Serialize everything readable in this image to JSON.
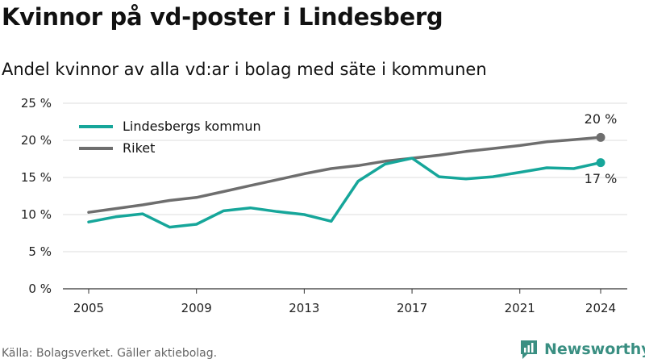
{
  "title": "Kvinnor på vd-poster i Lindesberg",
  "subtitle": "Andel kvinnor av alla vd:ar i bolag med säte i kommunen",
  "source": "Källa: Bolagsverket. Gäller aktiebolag.",
  "brand": "Newsworthy",
  "colors": {
    "lindesberg": "#16a69a",
    "riket": "#6e6e6e",
    "brand": "#3a8f82"
  },
  "chart_data": {
    "type": "line",
    "x": [
      2005,
      2006,
      2007,
      2008,
      2009,
      2010,
      2011,
      2012,
      2013,
      2014,
      2015,
      2016,
      2017,
      2018,
      2019,
      2020,
      2021,
      2022,
      2023,
      2024
    ],
    "series": [
      {
        "name": "Lindesbergs kommun",
        "color": "#16a69a",
        "values": [
          9.0,
          9.7,
          10.1,
          8.3,
          8.7,
          10.5,
          10.9,
          10.4,
          10.0,
          9.1,
          14.5,
          16.8,
          17.6,
          15.1,
          14.8,
          15.1,
          15.7,
          16.3,
          16.2,
          17.0
        ]
      },
      {
        "name": "Riket",
        "color": "#6e6e6e",
        "values": [
          10.3,
          10.8,
          11.3,
          11.9,
          12.3,
          13.1,
          13.9,
          14.7,
          15.5,
          16.2,
          16.6,
          17.2,
          17.6,
          18.0,
          18.5,
          18.9,
          19.3,
          19.8,
          20.1,
          20.4
        ]
      }
    ],
    "xticks": [
      2005,
      2009,
      2013,
      2017,
      2021,
      2024
    ],
    "yticks": [
      0,
      5,
      10,
      15,
      20,
      25
    ],
    "ytick_labels": [
      "0 %",
      "5 %",
      "10 %",
      "15 %",
      "20 %",
      "25 %"
    ],
    "ylim": [
      0,
      25
    ],
    "end_labels": [
      "17 %",
      "20 %"
    ],
    "grid": true,
    "legend_position": "top-left"
  }
}
